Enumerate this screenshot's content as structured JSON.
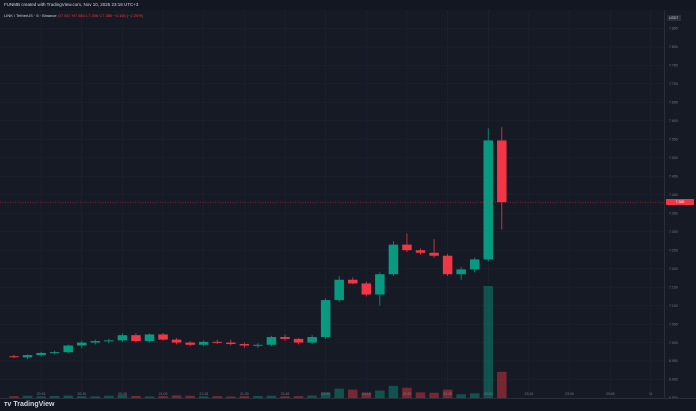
{
  "header": {
    "title": "FUNMB created with TradingView.com, Nov 10, 2025 23:18 UTC+3"
  },
  "legend": {
    "symbol": "LINK / TetherUS · 5 · Binance",
    "ohlc": "O7.547 H7.583 L7.306 C7.380 −0.166 (−2.20%)"
  },
  "axis": {
    "currency": "USDT",
    "last_price": "7.380"
  },
  "brand": {
    "name": "TradingView"
  },
  "colors": {
    "up": "#089981",
    "down": "#f23645",
    "background": "#161a25",
    "grid": "#1f2430"
  },
  "chart_data": {
    "type": "candlestick",
    "xlabel": "",
    "ylabel": "",
    "ylim": [
      6.85,
      7.9
    ],
    "yticks": [
      6.85,
      6.9,
      6.95,
      7.0,
      7.05,
      7.1,
      7.15,
      7.2,
      7.25,
      7.3,
      7.35,
      7.4,
      7.45,
      7.5,
      7.55,
      7.6,
      7.65,
      7.7,
      7.75,
      7.8,
      7.85
    ],
    "ytick_labels": [
      "6.850",
      "6.900",
      "6.950",
      "7.000",
      "7.050",
      "7.100",
      "7.150",
      "7.200",
      "7.250",
      "7.300",
      "7.350",
      "7.400",
      "7.450",
      "7.500",
      "7.550",
      "7.600",
      "7.650",
      "7.700",
      "7.750",
      "7.800",
      "7.850"
    ],
    "xtick_labels": [
      "20:15",
      "20:30",
      "20:45",
      "21:00",
      "21:15",
      "21:30",
      "21:45",
      "22:00",
      "22:15",
      "22:30",
      "22:45",
      "23:00",
      "23:15",
      "23:30",
      "23:45",
      "11"
    ],
    "series": [
      {
        "candles": [
          {
            "o": 6.963,
            "h": 6.967,
            "l": 6.958,
            "c": 6.962
          },
          {
            "o": 6.96,
            "h": 6.968,
            "l": 6.955,
            "c": 6.966
          },
          {
            "o": 6.966,
            "h": 6.975,
            "l": 6.962,
            "c": 6.972
          },
          {
            "o": 6.972,
            "h": 6.978,
            "l": 6.968,
            "c": 6.974
          },
          {
            "o": 6.974,
            "h": 6.995,
            "l": 6.97,
            "c": 6.992
          },
          {
            "o": 6.992,
            "h": 7.005,
            "l": 6.985,
            "c": 7.0
          },
          {
            "o": 7.0,
            "h": 7.008,
            "l": 6.995,
            "c": 7.004
          },
          {
            "o": 7.004,
            "h": 7.01,
            "l": 6.998,
            "c": 7.006
          },
          {
            "o": 7.006,
            "h": 7.025,
            "l": 7.002,
            "c": 7.02
          },
          {
            "o": 7.02,
            "h": 7.025,
            "l": 7.0,
            "c": 7.004
          },
          {
            "o": 7.004,
            "h": 7.025,
            "l": 7.0,
            "c": 7.022
          },
          {
            "o": 7.022,
            "h": 7.026,
            "l": 7.005,
            "c": 7.008
          },
          {
            "o": 7.008,
            "h": 7.012,
            "l": 6.995,
            "c": 7.0
          },
          {
            "o": 7.0,
            "h": 7.004,
            "l": 6.99,
            "c": 6.994
          },
          {
            "o": 6.994,
            "h": 7.006,
            "l": 6.99,
            "c": 7.002
          },
          {
            "o": 7.002,
            "h": 7.008,
            "l": 6.996,
            "c": 7.0
          },
          {
            "o": 7.0,
            "h": 7.008,
            "l": 6.992,
            "c": 6.996
          },
          {
            "o": 6.996,
            "h": 7.0,
            "l": 6.986,
            "c": 6.992
          },
          {
            "o": 6.992,
            "h": 6.998,
            "l": 6.986,
            "c": 6.994
          },
          {
            "o": 6.994,
            "h": 7.018,
            "l": 6.99,
            "c": 7.015
          },
          {
            "o": 7.015,
            "h": 7.022,
            "l": 7.005,
            "c": 7.01
          },
          {
            "o": 7.01,
            "h": 7.012,
            "l": 6.995,
            "c": 7.0
          },
          {
            "o": 7.0,
            "h": 7.02,
            "l": 6.996,
            "c": 7.015
          },
          {
            "o": 7.015,
            "h": 7.12,
            "l": 7.01,
            "c": 7.115
          },
          {
            "o": 7.115,
            "h": 7.18,
            "l": 7.11,
            "c": 7.17
          },
          {
            "o": 7.17,
            "h": 7.176,
            "l": 7.158,
            "c": 7.16
          },
          {
            "o": 7.16,
            "h": 7.165,
            "l": 7.125,
            "c": 7.13
          },
          {
            "o": 7.13,
            "h": 7.19,
            "l": 7.1,
            "c": 7.185
          },
          {
            "o": 7.185,
            "h": 7.275,
            "l": 7.18,
            "c": 7.265
          },
          {
            "o": 7.265,
            "h": 7.295,
            "l": 7.245,
            "c": 7.25
          },
          {
            "o": 7.25,
            "h": 7.255,
            "l": 7.238,
            "c": 7.243
          },
          {
            "o": 7.243,
            "h": 7.28,
            "l": 7.23,
            "c": 7.235
          },
          {
            "o": 7.235,
            "h": 7.24,
            "l": 7.18,
            "c": 7.185
          },
          {
            "o": 7.185,
            "h": 7.205,
            "l": 7.17,
            "c": 7.198
          },
          {
            "o": 7.198,
            "h": 7.23,
            "l": 7.19,
            "c": 7.225
          },
          {
            "o": 7.225,
            "h": 7.58,
            "l": 7.22,
            "c": 7.547
          },
          {
            "o": 7.547,
            "h": 7.583,
            "l": 7.306,
            "c": 7.38
          }
        ],
        "volumes": [
          1.0,
          1.2,
          0.9,
          1.1,
          1.3,
          1.0,
          0.9,
          1.2,
          1.6,
          1.1,
          0.8,
          1.0,
          1.4,
          1.2,
          0.9,
          1.0,
          0.8,
          1.0,
          1.1,
          1.2,
          0.9,
          1.0,
          1.3,
          3.0,
          5.0,
          4.5,
          2.8,
          4.0,
          6.5,
          5.5,
          3.0,
          2.8,
          4.5,
          2.0,
          2.5,
          60.0,
          14.0
        ]
      }
    ],
    "volume_max": 60.0
  }
}
